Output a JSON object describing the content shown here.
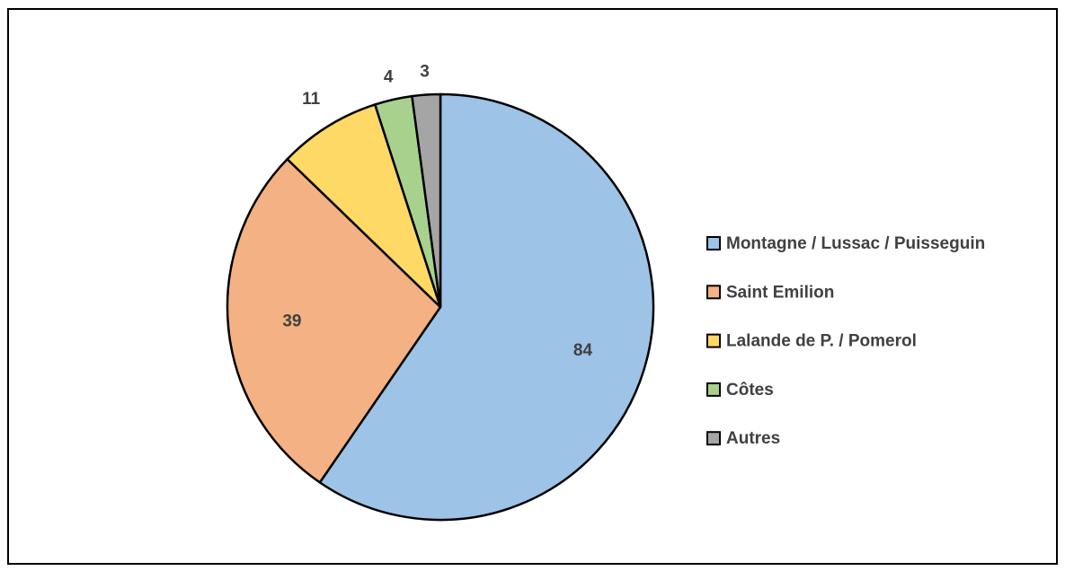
{
  "chart_data": {
    "type": "pie",
    "categories": [
      "Montagne / Lussac / Puisseguin",
      "Saint Emilion",
      "Lalande de P. / Pomerol",
      "Côtes",
      "Autres"
    ],
    "values": [
      84,
      39,
      11,
      4,
      3
    ],
    "colors": [
      "#9dc3e6",
      "#f4b183",
      "#ffd966",
      "#a9d18e",
      "#a5a5a5"
    ],
    "legend": "right"
  }
}
